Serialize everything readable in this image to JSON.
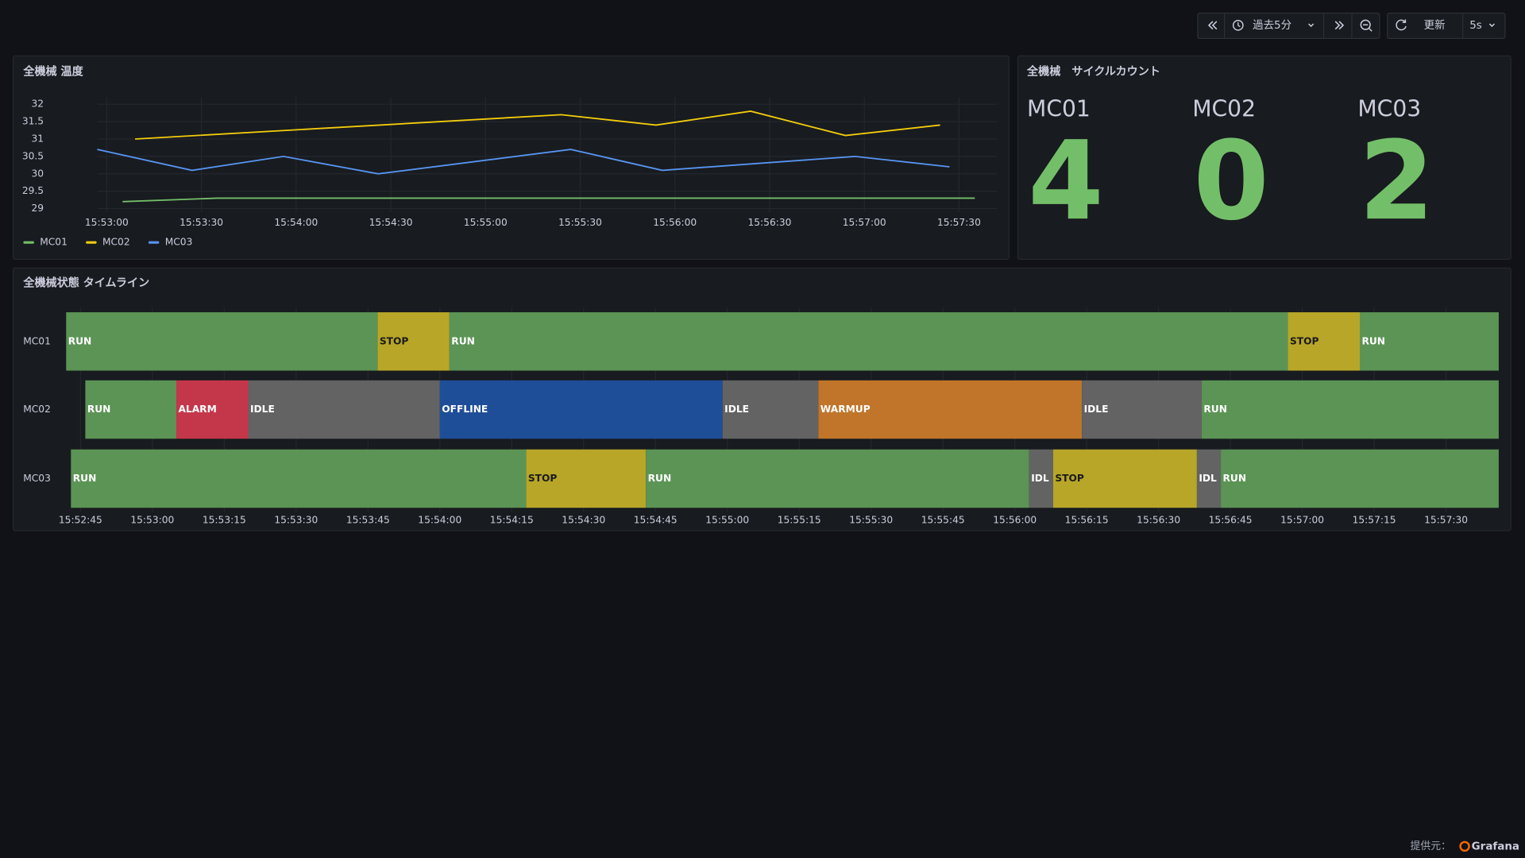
{
  "toolbar": {
    "time_range": "過去5分",
    "refresh": "更新",
    "interval": "5s"
  },
  "temperature_panel": {
    "title": "全機械 温度",
    "chart_data": {
      "type": "line",
      "xlim": [
        "15:52:57",
        "15:57:42"
      ],
      "xticks": [
        "15:53:00",
        "15:53:30",
        "15:54:00",
        "15:54:30",
        "15:55:00",
        "15:55:30",
        "15:56:00",
        "15:56:30",
        "15:57:00",
        "15:57:30"
      ],
      "ylim": [
        28.9,
        32.2
      ],
      "yticks": [
        29,
        29.5,
        30,
        30.5,
        31,
        31.5,
        32
      ],
      "grid": true,
      "legend": "bottom-left",
      "series": [
        {
          "name": "MC01",
          "color": "#73bf69",
          "x": [
            "15:53:05",
            "15:53:35",
            "15:57:35"
          ],
          "values": [
            29.2,
            29.3,
            29.3
          ]
        },
        {
          "name": "MC02",
          "color": "#f2cc0c",
          "x": [
            "15:53:09",
            "15:55:24",
            "15:55:54",
            "15:56:24",
            "15:56:54",
            "15:57:24"
          ],
          "values": [
            31.0,
            31.7,
            31.4,
            31.8,
            31.1,
            31.4
          ]
        },
        {
          "name": "MC03",
          "color": "#5794f2",
          "x": [
            "15:52:57",
            "15:53:27",
            "15:53:56",
            "15:54:26",
            "15:55:27",
            "15:55:56",
            "15:56:57",
            "15:57:27"
          ],
          "values": [
            30.7,
            30.1,
            30.5,
            30.0,
            30.7,
            30.1,
            30.5,
            30.2
          ]
        }
      ]
    }
  },
  "cycle_panel": {
    "title": "全機械　サイクルカウント",
    "color": "#73bf69",
    "items": [
      {
        "name": "MC01",
        "value": 4
      },
      {
        "name": "MC02",
        "value": 0
      },
      {
        "name": "MC03",
        "value": 2
      }
    ]
  },
  "timeline_panel": {
    "title": "全機械状態 タイムライン",
    "xlim": [
      "15:52:42",
      "15:57:41"
    ],
    "xticks": [
      "15:52:45",
      "15:53:00",
      "15:53:15",
      "15:53:30",
      "15:53:45",
      "15:54:00",
      "15:54:15",
      "15:54:30",
      "15:54:45",
      "15:55:00",
      "15:55:15",
      "15:55:30",
      "15:55:45",
      "15:56:00",
      "15:56:15",
      "15:56:30",
      "15:56:45",
      "15:57:00",
      "15:57:15",
      "15:57:30"
    ],
    "state_colors": {
      "RUN": "#5b9455",
      "STOP": "#b8a628",
      "ALARM": "#c4374a",
      "IDLE": "#636363",
      "IDL": "#636363",
      "OFFLINE": "#1f4e99",
      "WARMUP": "#c0752a"
    },
    "rows": [
      {
        "name": "MC01",
        "segments": [
          {
            "state": "RUN",
            "start": "15:52:42",
            "end": "15:53:47"
          },
          {
            "state": "STOP",
            "start": "15:53:47",
            "end": "15:54:02"
          },
          {
            "state": "RUN",
            "start": "15:54:02",
            "end": "15:56:57"
          },
          {
            "state": "STOP",
            "start": "15:56:57",
            "end": "15:57:12"
          },
          {
            "state": "RUN",
            "start": "15:57:12",
            "end": "15:57:41"
          }
        ]
      },
      {
        "name": "MC02",
        "segments": [
          {
            "state": "RUN",
            "start": "15:52:46",
            "end": "15:53:05"
          },
          {
            "state": "ALARM",
            "start": "15:53:05",
            "end": "15:53:20"
          },
          {
            "state": "IDLE",
            "start": "15:53:20",
            "end": "15:54:00"
          },
          {
            "state": "OFFLINE",
            "start": "15:54:00",
            "end": "15:54:59"
          },
          {
            "state": "IDLE",
            "start": "15:54:59",
            "end": "15:55:19"
          },
          {
            "state": "WARMUP",
            "start": "15:55:19",
            "end": "15:56:14"
          },
          {
            "state": "IDLE",
            "start": "15:56:14",
            "end": "15:56:39"
          },
          {
            "state": "RUN",
            "start": "15:56:39",
            "end": "15:57:41"
          }
        ]
      },
      {
        "name": "MC03",
        "segments": [
          {
            "state": "RUN",
            "start": "15:52:43",
            "end": "15:54:18"
          },
          {
            "state": "STOP",
            "start": "15:54:18",
            "end": "15:54:43"
          },
          {
            "state": "RUN",
            "start": "15:54:43",
            "end": "15:56:03"
          },
          {
            "state": "IDL",
            "start": "15:56:03",
            "end": "15:56:08"
          },
          {
            "state": "STOP",
            "start": "15:56:08",
            "end": "15:56:38"
          },
          {
            "state": "IDL",
            "start": "15:56:38",
            "end": "15:56:43"
          },
          {
            "state": "RUN",
            "start": "15:56:43",
            "end": "15:57:41"
          }
        ]
      }
    ]
  },
  "footer": {
    "label": "提供元：",
    "brand": "Grafana"
  }
}
